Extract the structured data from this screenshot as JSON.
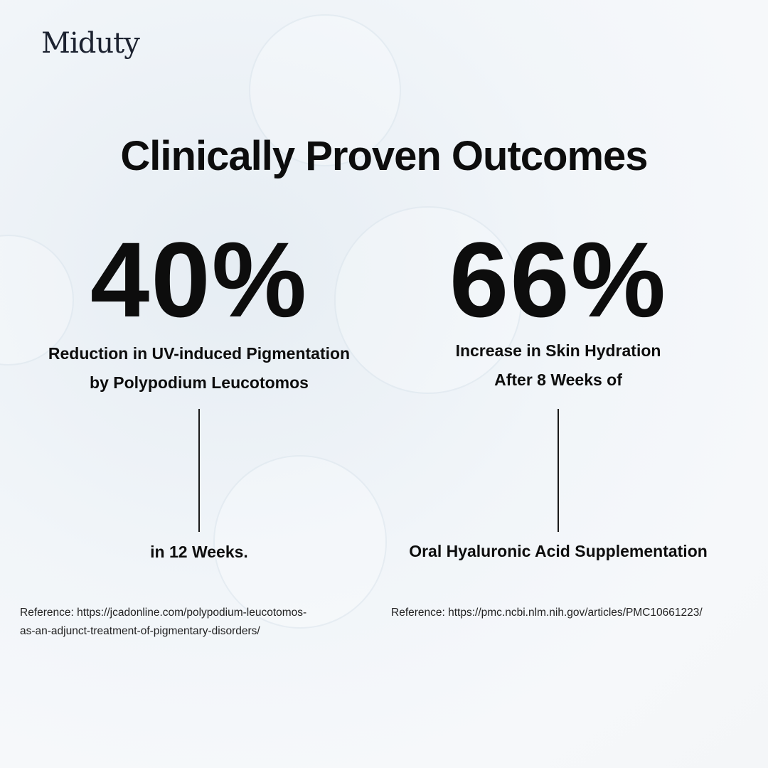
{
  "header": {
    "brand": "Miduty",
    "title": "Clinically Proven Outcomes"
  },
  "stats": [
    {
      "value": "40%",
      "label": [
        "Reduction in UV-induced Pigmentation",
        "by Polypodium Leucotomos"
      ],
      "detail": "in 12 Weeks.",
      "reference": [
        "Reference: https://jcadonline.com/polypodium-leucotomos-",
        "as-an-adjunct-treatment-of-pigmentary-disorders/"
      ]
    },
    {
      "value": "66%",
      "label": [
        "Increase in Skin Hydration",
        "After 8 Weeks of"
      ],
      "detail": "Oral Hyaluronic Acid Supplementation",
      "reference": [
        "Reference: https://pmc.ncbi.nlm.nih.gov/articles/PMC10661223/"
      ]
    }
  ]
}
